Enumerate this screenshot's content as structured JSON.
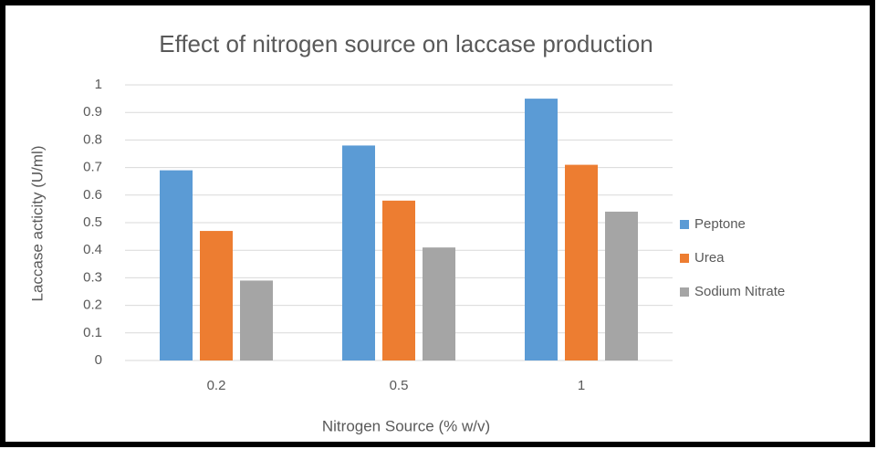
{
  "chart_data": {
    "type": "bar",
    "title": "Effect of nitrogen source on laccase production",
    "x_label": "Nitrogen Source (% w/v)",
    "y_label": "Laccase acticity (U/ml)",
    "categories": [
      "0.2",
      "0.5",
      "1"
    ],
    "series": [
      {
        "name": "Peptone",
        "color": "#5b9bd5",
        "values": [
          0.69,
          0.78,
          0.95
        ]
      },
      {
        "name": "Urea",
        "color": "#ed7d31",
        "values": [
          0.47,
          0.58,
          0.71
        ]
      },
      {
        "name": "Sodium Nitrate",
        "color": "#a5a5a5",
        "values": [
          0.29,
          0.41,
          0.54
        ]
      }
    ],
    "ylim": [
      0,
      1
    ],
    "yticks": [
      0,
      0.1,
      0.2,
      0.3,
      0.4,
      0.5,
      0.6,
      0.7,
      0.8,
      0.9,
      1
    ],
    "grid": true,
    "legend": "right"
  }
}
